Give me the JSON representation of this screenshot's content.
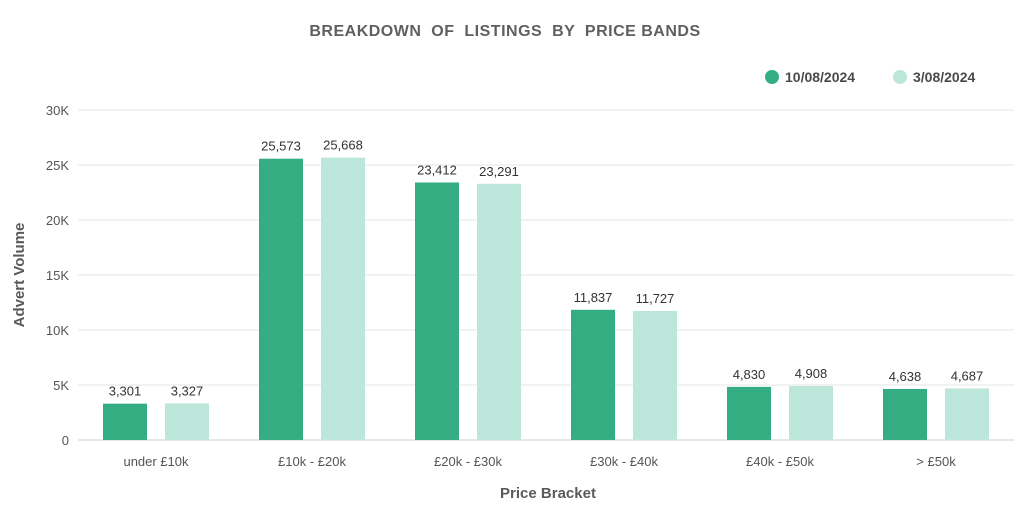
{
  "colors": {
    "series1": "#35ad82",
    "series2": "#bde6da"
  },
  "chart_data": {
    "type": "bar",
    "title": "BREAKDOWN  OF  LISTINGS  BY  PRICE BANDS",
    "xlabel": "Price Bracket",
    "ylabel": "Advert Volume",
    "ylim": [
      0,
      30000
    ],
    "yticks": [
      0,
      5000,
      10000,
      15000,
      20000,
      25000,
      30000
    ],
    "ytick_labels": [
      "0",
      "5K",
      "10K",
      "15K",
      "20K",
      "25K",
      "30K"
    ],
    "grid": true,
    "legend_position": "top-right",
    "categories": [
      "under £10k",
      "£10k - £20k",
      "£20k - £30k",
      "£30k - £40k",
      "£40k - £50k",
      "> £50k"
    ],
    "series": [
      {
        "name": "10/08/2024",
        "values": [
          3301,
          25573,
          23412,
          11837,
          4830,
          4638
        ],
        "labels": [
          "3,301",
          "25,573",
          "23,412",
          "11,837",
          "4,830",
          "4,638"
        ]
      },
      {
        "name": "3/08/2024",
        "values": [
          3327,
          25668,
          23291,
          11727,
          4908,
          4687
        ],
        "labels": [
          "3,327",
          "25,668",
          "23,291",
          "11,727",
          "4,908",
          "4,687"
        ]
      }
    ]
  }
}
